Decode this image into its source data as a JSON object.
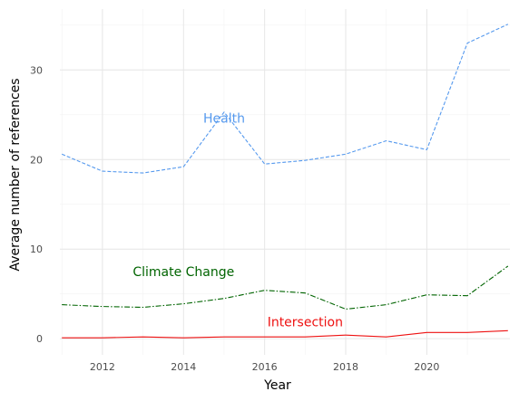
{
  "chart_data": {
    "type": "line",
    "xlabel": "Year",
    "ylabel": "Average number of references",
    "xlim": [
      2010.95,
      2022.05
    ],
    "ylim": [
      -1.8,
      36.8
    ],
    "x_ticks": [
      2012,
      2014,
      2016,
      2018,
      2020
    ],
    "y_ticks": [
      0,
      10,
      20,
      30
    ],
    "grid": true,
    "legend": "none",
    "x": [
      2011,
      2012,
      2013,
      2014,
      2015,
      2016,
      2017,
      2018,
      2019,
      2020,
      2021,
      2022
    ],
    "series": [
      {
        "name": "Health",
        "color": "#5599ee",
        "dash": "dashed",
        "values": [
          20.6,
          18.7,
          18.5,
          19.2,
          25.3,
          19.5,
          19.9,
          20.6,
          22.1,
          21.1,
          33.0,
          35.1
        ],
        "label_at": [
          2015,
          24.6
        ]
      },
      {
        "name": "Climate Change",
        "color": "#006400",
        "dash": "dashdot",
        "values": [
          3.8,
          3.6,
          3.5,
          3.9,
          4.5,
          5.4,
          5.1,
          3.3,
          3.8,
          4.9,
          4.8,
          8.1
        ],
        "label_at": [
          2014,
          7.5
        ]
      },
      {
        "name": "Intersection",
        "color": "#ee1111",
        "dash": "solid",
        "values": [
          0.1,
          0.1,
          0.2,
          0.1,
          0.2,
          0.2,
          0.2,
          0.4,
          0.2,
          0.7,
          0.7,
          0.9
        ],
        "label_at": [
          2017,
          1.9
        ]
      }
    ]
  }
}
